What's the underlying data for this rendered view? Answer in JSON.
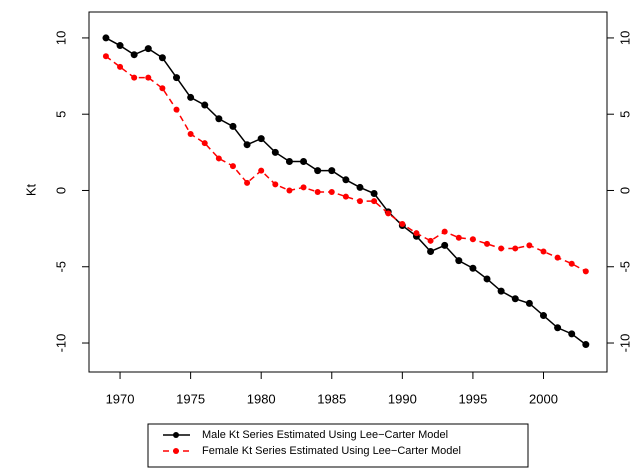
{
  "chart_data": {
    "type": "line",
    "y_label": "Kt",
    "x": [
      1969,
      1970,
      1971,
      1972,
      1973,
      1974,
      1975,
      1976,
      1977,
      1978,
      1979,
      1980,
      1981,
      1982,
      1983,
      1984,
      1985,
      1986,
      1987,
      1988,
      1989,
      1990,
      1991,
      1992,
      1993,
      1994,
      1995,
      1996,
      1997,
      1998,
      1999,
      2000,
      2001,
      2002,
      2003
    ],
    "series": [
      {
        "name": "Male Kt Series Estimated Using Lee−Carter Model",
        "color": "#000000",
        "dash": false,
        "values": [
          10.0,
          9.5,
          8.9,
          9.3,
          8.7,
          7.4,
          6.1,
          5.6,
          4.7,
          4.2,
          3.0,
          3.4,
          2.5,
          1.9,
          1.9,
          1.3,
          1.3,
          0.7,
          0.2,
          -0.2,
          -1.4,
          -2.3,
          -3.0,
          -4.0,
          -3.6,
          -4.6,
          -5.1,
          -5.8,
          -6.6,
          -7.1,
          -7.4,
          -8.2,
          -9.0,
          -9.4,
          -10.1
        ]
      },
      {
        "name": "Female Kt Series Estimated Using Lee−Carter Model",
        "color": "#ff0000",
        "dash": true,
        "values": [
          8.8,
          8.1,
          7.4,
          7.4,
          6.7,
          5.3,
          3.7,
          3.1,
          2.1,
          1.6,
          0.5,
          1.3,
          0.4,
          0.0,
          0.2,
          -0.1,
          -0.1,
          -0.4,
          -0.7,
          -0.7,
          -1.5,
          -2.2,
          -2.8,
          -3.3,
          -2.7,
          -3.1,
          -3.2,
          -3.5,
          -3.8,
          -3.8,
          -3.6,
          -4.0,
          -4.4,
          -4.8,
          -5.3
        ]
      }
    ],
    "xlim": [
      1967.8,
      2004.5
    ],
    "ylim": [
      -11.9,
      11.7
    ],
    "xticks": [
      1970,
      1975,
      1980,
      1985,
      1990,
      1995,
      2000
    ],
    "yticks": [
      -10,
      -5,
      0,
      5,
      10
    ],
    "legend": "bottom"
  }
}
